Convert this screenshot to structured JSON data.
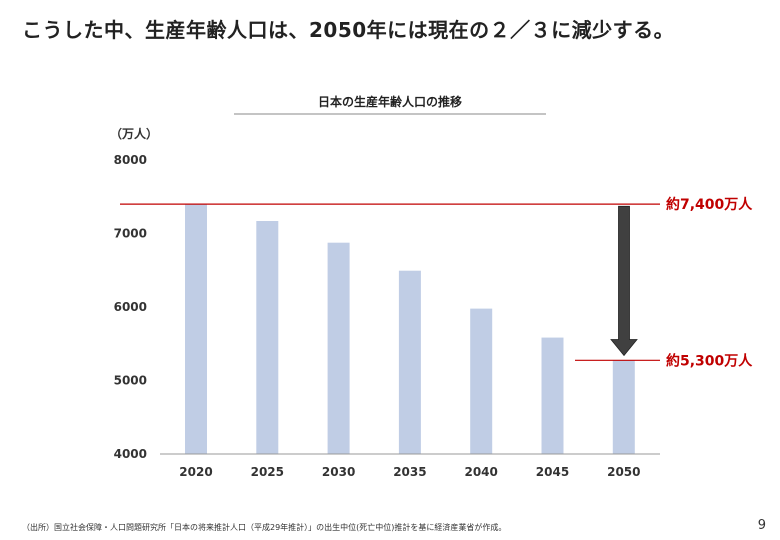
{
  "slide": {
    "title": "こうした中、生産年齢人口は、2050年には現在の２／３に減少する。",
    "source": "（出所）国立社会保障・人口問題研究所「日本の将来推計人口（平成29年推計）」の出生中位(死亡中位)推計を基に経済産業省が作成。",
    "page_number": "9"
  },
  "chart_data": {
    "type": "bar",
    "title": "日本の生産年齢人口の推移",
    "unit_label": "（万人）",
    "categories": [
      "2020",
      "2025",
      "2030",
      "2035",
      "2040",
      "2045",
      "2050"
    ],
    "values": [
      7406,
      7170,
      6875,
      6494,
      5978,
      5584,
      5275
    ],
    "ylim": [
      4000,
      8000
    ],
    "yticks": [
      "4000",
      "5000",
      "6000",
      "7000",
      "8000"
    ],
    "bar_color": "#c0cde5",
    "grid": false,
    "annotations": {
      "high": {
        "text": "約7,400万人",
        "value": 7400,
        "color": "#c00000"
      },
      "low": {
        "text": "約5,300万人",
        "value": 5275,
        "color": "#c00000"
      },
      "arrow": {
        "from": 7370,
        "to": 5340,
        "color": "#404040"
      }
    }
  }
}
